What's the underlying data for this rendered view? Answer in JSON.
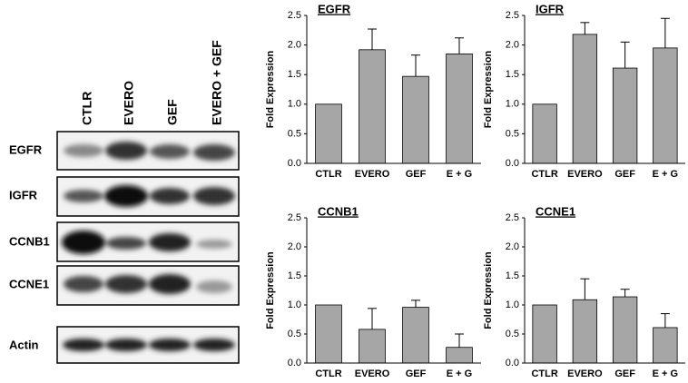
{
  "blot": {
    "columns": [
      "CTLR",
      "EVERO",
      "GEF",
      "EVERO + GEF"
    ],
    "rows": [
      "EGFR",
      "IGFR",
      "CCNB1",
      "CCNE1",
      "Actin"
    ]
  },
  "chart_data": [
    {
      "type": "bar",
      "title": "EGFR",
      "y_label": "Fold Expression",
      "color": "#a6a6a6",
      "categories": [
        "CTLR",
        "EVERO",
        "GEF",
        "E + G"
      ],
      "values": [
        1.0,
        1.92,
        1.47,
        1.85
      ],
      "errors": [
        null,
        0.35,
        0.36,
        0.27
      ],
      "ylim": [
        0,
        2.5
      ],
      "yticks": [
        {
          "value": 0,
          "label": "0.0"
        },
        0.5,
        {
          "value": 1,
          "label": "1.0"
        },
        1.5,
        {
          "value": 2,
          "label": "2.0"
        },
        2.5
      ]
    },
    {
      "type": "bar",
      "title": "IGFR",
      "y_label": "Fold Expression",
      "color": "#a6a6a6",
      "categories": [
        "CTLR",
        "EVERO",
        "GEF",
        "E + G"
      ],
      "values": [
        1.0,
        2.18,
        1.61,
        1.95
      ],
      "errors": [
        null,
        0.2,
        0.44,
        0.5
      ],
      "ylim": [
        0,
        2.5
      ],
      "yticks": [
        {
          "value": 0,
          "label": "0.0"
        },
        0.5,
        {
          "value": 1,
          "label": "1.0"
        },
        1.5,
        {
          "value": 2,
          "label": "2.0"
        },
        2.5
      ]
    },
    {
      "type": "bar",
      "title": "CCNB1",
      "y_label": "Fold Expression",
      "color": "#a6a6a6",
      "categories": [
        "CTLR",
        "EVERO",
        "GEF",
        "E + G"
      ],
      "values": [
        1.0,
        0.58,
        0.96,
        0.27
      ],
      "errors": [
        null,
        0.36,
        0.12,
        0.23
      ],
      "ylim": [
        0,
        2.5
      ],
      "yticks": [
        {
          "value": 0,
          "label": "0.0"
        },
        0.5,
        {
          "value": 1,
          "label": "1.0"
        },
        1.5,
        {
          "value": 2,
          "label": "2.0"
        },
        2.5
      ]
    },
    {
      "type": "bar",
      "title": "CCNE1",
      "y_label": "Fold Expression",
      "color": "#a6a6a6",
      "categories": [
        "CTLR",
        "EVERO",
        "GEF",
        "E + G"
      ],
      "values": [
        1.0,
        1.09,
        1.14,
        0.61
      ],
      "errors": [
        null,
        0.36,
        0.13,
        0.24
      ],
      "ylim": [
        0,
        2.5
      ],
      "yticks": [
        {
          "value": 0,
          "label": "0.0"
        },
        0.5,
        {
          "value": 1,
          "label": "1.0"
        },
        1.5,
        {
          "value": 2,
          "label": "2.0"
        },
        2.5
      ]
    }
  ]
}
